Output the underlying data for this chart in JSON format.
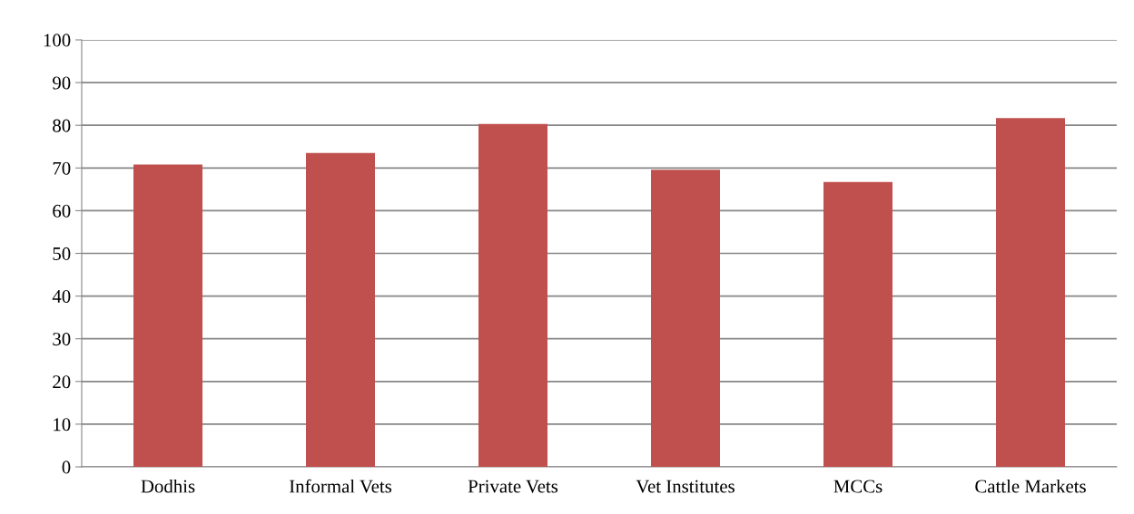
{
  "chart_data": {
    "type": "bar",
    "categories": [
      "Dodhis",
      "Informal Vets",
      "Private Vets",
      "Vet Institutes",
      "MCCs",
      "Cattle Markets"
    ],
    "values": [
      70.8,
      73.5,
      80.3,
      69.6,
      66.7,
      81.7
    ],
    "color": "#c0504d",
    "ylim": [
      0,
      100
    ],
    "yticks": [
      0,
      10,
      20,
      30,
      40,
      50,
      60,
      70,
      80,
      90,
      100
    ],
    "grid": "y"
  }
}
